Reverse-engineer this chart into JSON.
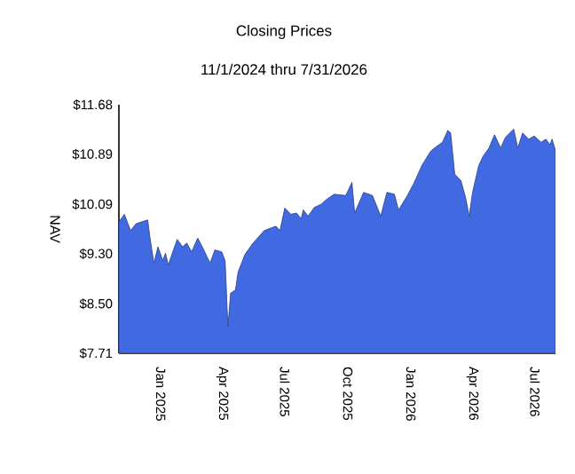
{
  "chart_data": {
    "type": "area",
    "title": "Closing Prices",
    "subtitle": "11/1/2024 thru 7/31/2026",
    "ylabel": "NAV",
    "x": [
      "2024-11-01",
      "2024-11-09",
      "2024-11-18",
      "2024-11-26",
      "2024-12-13",
      "2024-12-16",
      "2024-12-22",
      "2024-12-28",
      "2025-01-04",
      "2025-01-08",
      "2025-01-12",
      "2025-01-25",
      "2025-02-02",
      "2025-02-08",
      "2025-02-15",
      "2025-02-24",
      "2025-03-04",
      "2025-03-14",
      "2025-03-21",
      "2025-03-31",
      "2025-04-05",
      "2025-04-09",
      "2025-04-13",
      "2025-04-20",
      "2025-04-24",
      "2025-05-04",
      "2025-05-15",
      "2025-06-01",
      "2025-06-18",
      "2025-06-24",
      "2025-07-01",
      "2025-07-10",
      "2025-07-18",
      "2025-07-25",
      "2025-07-28",
      "2025-08-04",
      "2025-08-13",
      "2025-08-23",
      "2025-08-30",
      "2025-09-11",
      "2025-09-28",
      "2025-10-07",
      "2025-10-11",
      "2025-10-24",
      "2025-11-06",
      "2025-11-18",
      "2025-11-27",
      "2025-12-08",
      "2025-12-14",
      "2025-12-27",
      "2026-01-06",
      "2026-01-17",
      "2026-01-30",
      "2026-02-07",
      "2026-02-16",
      "2026-02-24",
      "2026-02-28",
      "2026-03-06",
      "2026-03-15",
      "2026-03-22",
      "2026-03-27",
      "2026-04-01",
      "2026-04-10",
      "2026-04-16",
      "2026-04-25",
      "2026-05-03",
      "2026-05-12",
      "2026-05-19",
      "2026-05-31",
      "2026-06-06",
      "2026-06-13",
      "2026-06-22",
      "2026-06-30",
      "2026-07-10",
      "2026-07-17",
      "2026-07-23",
      "2026-07-26",
      "2026-07-31"
    ],
    "series": [
      {
        "color": "#4169e1",
        "values": [
          9.81,
          9.93,
          9.67,
          9.78,
          9.84,
          9.58,
          9.15,
          9.41,
          9.19,
          9.31,
          9.12,
          9.53,
          9.41,
          9.47,
          9.33,
          9.55,
          9.38,
          9.15,
          9.36,
          9.33,
          9.19,
          8.14,
          8.67,
          8.72,
          9.01,
          9.29,
          9.46,
          9.67,
          9.74,
          9.67,
          10.03,
          9.93,
          9.95,
          9.86,
          10.0,
          9.9,
          10.04,
          10.09,
          10.16,
          10.25,
          10.23,
          10.44,
          9.95,
          10.28,
          10.23,
          9.9,
          10.28,
          10.25,
          10.0,
          10.23,
          10.44,
          10.71,
          10.94,
          11.01,
          11.08,
          11.27,
          11.23,
          10.57,
          10.47,
          10.19,
          9.9,
          10.28,
          10.71,
          10.85,
          10.99,
          11.2,
          10.99,
          11.16,
          11.29,
          10.99,
          11.23,
          11.13,
          11.18,
          11.08,
          11.13,
          11.04,
          11.13,
          10.95
        ]
      }
    ],
    "xlim": [
      "2024-11-01",
      "2026-07-31"
    ],
    "xticks": [
      {
        "value": "2025-01-01",
        "label": "Jan  2025"
      },
      {
        "value": "2025-04-01",
        "label": "Apr  2025"
      },
      {
        "value": "2025-07-01",
        "label": "Jul  2025"
      },
      {
        "value": "2025-10-01",
        "label": "Oct  2025"
      },
      {
        "value": "2026-01-01",
        "label": "Jan  2026"
      },
      {
        "value": "2026-04-01",
        "label": "Apr  2026"
      },
      {
        "value": "2026-07-01",
        "label": "Jul  2026"
      }
    ],
    "ylim": [
      7.71,
      11.68
    ],
    "yticks": [
      {
        "value": 7.71,
        "label": "$7.71"
      },
      {
        "value": 8.5,
        "label": "$8.50"
      },
      {
        "value": 9.3,
        "label": "$9.30"
      },
      {
        "value": 10.09,
        "label": "$10.09"
      },
      {
        "value": 10.89,
        "label": "$10.89"
      },
      {
        "value": 11.68,
        "label": "$11.68"
      }
    ]
  }
}
